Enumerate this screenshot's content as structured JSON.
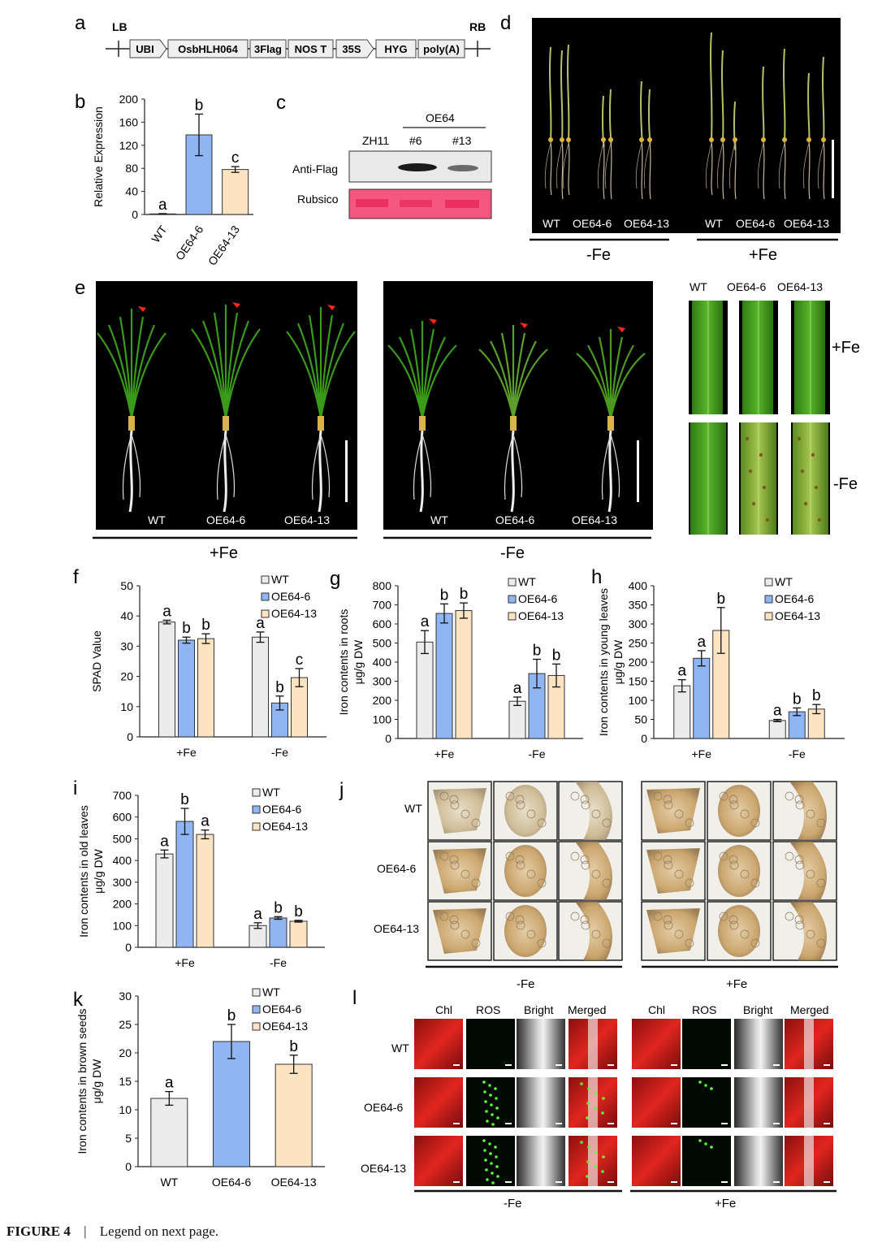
{
  "caption": {
    "figure": "FIGURE 4",
    "sep": "|",
    "text": "Legend on next page."
  },
  "colors": {
    "wt": "#ececec",
    "oe6": "#8fb6f2",
    "oe13": "#fce3c2",
    "panelBg": "#000000",
    "flagBand": "#f0396a"
  },
  "panel_a": {
    "letter": "a",
    "lb": "LB",
    "rb": "RB",
    "parts": [
      "UBI",
      "OsbHLH064",
      "3Flag",
      "NOS T",
      "35S",
      "HYG",
      "poly(A)"
    ]
  },
  "panel_c": {
    "letter": "c",
    "group": "OE64",
    "lanes": [
      "ZH11",
      "#6",
      "#13"
    ],
    "rows": [
      "Anti-Flag",
      "Rubsico"
    ]
  },
  "panel_d": {
    "letter": "d",
    "lanes": [
      "WT",
      "OE64-6",
      "OE64-13",
      "WT",
      "OE64-6",
      "OE64-13"
    ],
    "groups": [
      "-Fe",
      "+Fe"
    ]
  },
  "panel_e": {
    "letter": "e",
    "lanes_a": [
      "WT",
      "OE64-6",
      "OE64-13"
    ],
    "group_a": "+Fe",
    "lanes_b": [
      "WT",
      "OE64-6",
      "OE64-13"
    ],
    "group_b": "-Fe",
    "leaf_cols": [
      "WT",
      "OE64-6",
      "OE64-13"
    ],
    "leaf_rows": [
      "+Fe",
      "-Fe"
    ]
  },
  "panel_j": {
    "letter": "j",
    "rows": [
      "WT",
      "OE64-6",
      "OE64-13"
    ],
    "groups": [
      "-Fe",
      "+Fe"
    ]
  },
  "panel_l": {
    "letter": "l",
    "cols": [
      "Chl",
      "ROS",
      "Bright",
      "Merged"
    ],
    "rows": [
      "WT",
      "OE64-6",
      "OE64-13"
    ],
    "groups": [
      "-Fe",
      "+Fe"
    ]
  },
  "chart_data": [
    {
      "id": "b",
      "letter": "b",
      "type": "bar",
      "ylabel": "Relative Expression",
      "ylim": [
        0,
        200
      ],
      "yticks": [
        0,
        40,
        80,
        120,
        160,
        200
      ],
      "categories": [
        "WT",
        "OE64-6",
        "OE64-13"
      ],
      "values": [
        1,
        138,
        78
      ],
      "errors": [
        0.5,
        36,
        5
      ],
      "letters": [
        "a",
        "b",
        "c"
      ]
    },
    {
      "id": "f",
      "letter": "f",
      "type": "bar",
      "ylabel": "SPAD Value",
      "ylim": [
        0,
        50
      ],
      "yticks": [
        0,
        10,
        20,
        30,
        40,
        50
      ],
      "groups": [
        "+Fe",
        "-Fe"
      ],
      "legend": [
        "WT",
        "OE64-6",
        "OE64-13"
      ],
      "series": [
        {
          "name": "WT",
          "values": [
            38,
            33
          ],
          "errors": [
            0.6,
            1.7
          ],
          "letters": [
            "a",
            "a"
          ]
        },
        {
          "name": "OE64-6",
          "values": [
            32,
            11.2
          ],
          "errors": [
            1.0,
            2.3
          ],
          "letters": [
            "b",
            "b"
          ]
        },
        {
          "name": "OE64-13",
          "values": [
            32.5,
            19.6
          ],
          "errors": [
            1.6,
            3.0
          ],
          "letters": [
            "b",
            "c"
          ]
        }
      ]
    },
    {
      "id": "g",
      "letter": "g",
      "type": "bar",
      "ylabel": "Iron contents in roots",
      "ylabel2": "μg/g DW",
      "ylim": [
        0,
        800
      ],
      "yticks": [
        0,
        100,
        200,
        300,
        400,
        500,
        600,
        700,
        800
      ],
      "groups": [
        "+Fe",
        "-Fe"
      ],
      "legend": [
        "WT",
        "OE64-6",
        "OE64-13"
      ],
      "series": [
        {
          "name": "WT",
          "values": [
            505,
            195
          ],
          "errors": [
            60,
            22
          ],
          "letters": [
            "a",
            "a"
          ]
        },
        {
          "name": "OE64-6",
          "values": [
            655,
            340
          ],
          "errors": [
            50,
            75
          ],
          "letters": [
            "b",
            "b"
          ]
        },
        {
          "name": "OE64-13",
          "values": [
            670,
            330
          ],
          "errors": [
            40,
            60
          ],
          "letters": [
            "b",
            "b"
          ]
        }
      ]
    },
    {
      "id": "h",
      "letter": "h",
      "type": "bar",
      "ylabel": "Iron contents in young leaves",
      "ylabel2": "μg/g DW",
      "ylim": [
        0,
        400
      ],
      "yticks": [
        0,
        50,
        100,
        150,
        200,
        250,
        300,
        350,
        400
      ],
      "groups": [
        "+Fe",
        "-Fe"
      ],
      "legend": [
        "WT",
        "OE64-6",
        "OE64-13"
      ],
      "series": [
        {
          "name": "WT",
          "values": [
            138,
            47
          ],
          "errors": [
            16,
            3
          ],
          "letters": [
            "a",
            "a"
          ]
        },
        {
          "name": "OE64-6",
          "values": [
            210,
            70
          ],
          "errors": [
            20,
            10
          ],
          "letters": [
            "a",
            "b"
          ]
        },
        {
          "name": "OE64-13",
          "values": [
            283,
            77
          ],
          "errors": [
            60,
            12
          ],
          "letters": [
            "b",
            "b"
          ]
        }
      ]
    },
    {
      "id": "i",
      "letter": "i",
      "type": "bar",
      "ylabel": "Iron contents in old leaves",
      "ylabel2": "μg/g DW",
      "ylim": [
        0,
        700
      ],
      "yticks": [
        0,
        100,
        200,
        300,
        400,
        500,
        600,
        700
      ],
      "groups": [
        "+Fe",
        "-Fe"
      ],
      "legend": [
        "WT",
        "OE64-6",
        "OE64-13"
      ],
      "series": [
        {
          "name": "WT",
          "values": [
            430,
            100
          ],
          "errors": [
            18,
            13
          ],
          "letters": [
            "a",
            "a"
          ]
        },
        {
          "name": "OE64-6",
          "values": [
            580,
            135
          ],
          "errors": [
            60,
            6
          ],
          "letters": [
            "b",
            "b"
          ]
        },
        {
          "name": "OE64-13",
          "values": [
            520,
            120
          ],
          "errors": [
            20,
            4
          ],
          "letters": [
            "a",
            "b"
          ]
        }
      ]
    },
    {
      "id": "k",
      "letter": "k",
      "type": "bar",
      "ylabel": "Iron contents in brown seeds",
      "ylabel2": "μg/g DW",
      "ylim": [
        0,
        30
      ],
      "yticks": [
        0,
        5,
        10,
        15,
        20,
        25,
        30
      ],
      "categories": [
        "WT",
        "OE64-6",
        "OE64-13"
      ],
      "legend": [
        "WT",
        "OE64-6",
        "OE64-13"
      ],
      "values": [
        12,
        22,
        18
      ],
      "errors": [
        1.2,
        3.0,
        1.6
      ],
      "letters": [
        "a",
        "b",
        "b"
      ]
    }
  ]
}
